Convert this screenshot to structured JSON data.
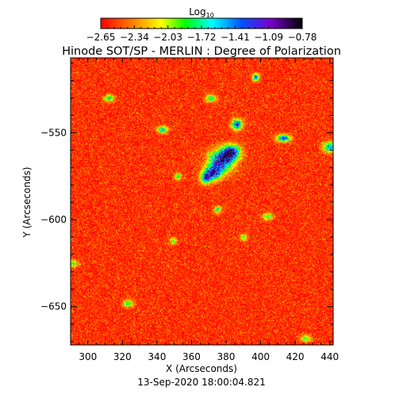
{
  "chart_data": {
    "type": "heatmap",
    "title": "Hinode SOT/SP - MERLIN : Degree of Polarization",
    "colorbar": {
      "label_base": "Log",
      "label_sub": "10",
      "ticks": [
        "-2.65",
        "-2.34",
        "-2.03",
        "-1.72",
        "-1.41",
        "-1.09",
        "-0.78"
      ],
      "range": [
        -2.65,
        -0.78
      ],
      "placement": "top"
    },
    "xlabel": "X (Arcseconds)",
    "ylabel": "Y (Arcseconds)",
    "xlim": [
      290,
      442
    ],
    "ylim": [
      -672,
      -507
    ],
    "xticks": [
      300,
      320,
      340,
      360,
      380,
      400,
      420,
      440
    ],
    "yticks": [
      -550,
      -600,
      -650
    ],
    "date": "13-Sep-2020 18:00:04.821",
    "background_level": -2.55,
    "features": [
      {
        "x": 377,
        "y": -566,
        "rx": 7,
        "ry": 6,
        "peak": -0.95
      },
      {
        "x": 383,
        "y": -561,
        "rx": 5,
        "ry": 4,
        "peak": -1.05
      },
      {
        "x": 372,
        "y": -573,
        "rx": 5,
        "ry": 4,
        "peak": -1.15
      },
      {
        "x": 386,
        "y": -545,
        "rx": 3,
        "ry": 3,
        "peak": -1.15
      },
      {
        "x": 368,
        "y": -576,
        "rx": 3,
        "ry": 3,
        "peak": -1.4
      },
      {
        "x": 371,
        "y": -530,
        "rx": 3,
        "ry": 2,
        "peak": -1.6
      },
      {
        "x": 413,
        "y": -553,
        "rx": 4,
        "ry": 2,
        "peak": -1.2
      },
      {
        "x": 440,
        "y": -558,
        "rx": 4,
        "ry": 3,
        "peak": -1.4
      },
      {
        "x": 397,
        "y": -518,
        "rx": 2,
        "ry": 2,
        "peak": -1.3
      },
      {
        "x": 343,
        "y": -548,
        "rx": 3,
        "ry": 2,
        "peak": -1.5
      },
      {
        "x": 312,
        "y": -530,
        "rx": 3,
        "ry": 2,
        "peak": -1.7
      },
      {
        "x": 375,
        "y": -594,
        "rx": 2,
        "ry": 2,
        "peak": -1.6
      },
      {
        "x": 352,
        "y": -575,
        "rx": 2,
        "ry": 2,
        "peak": -1.7
      },
      {
        "x": 323,
        "y": -648,
        "rx": 3,
        "ry": 2,
        "peak": -1.7
      },
      {
        "x": 291,
        "y": -625,
        "rx": 3,
        "ry": 2,
        "peak": -1.8
      },
      {
        "x": 404,
        "y": -598,
        "rx": 3,
        "ry": 2,
        "peak": -1.8
      },
      {
        "x": 426,
        "y": -668,
        "rx": 3,
        "ry": 2,
        "peak": -1.8
      },
      {
        "x": 390,
        "y": -610,
        "rx": 2,
        "ry": 2,
        "peak": -1.8
      },
      {
        "x": 349,
        "y": -612,
        "rx": 2,
        "ry": 2,
        "peak": -1.85
      }
    ]
  }
}
